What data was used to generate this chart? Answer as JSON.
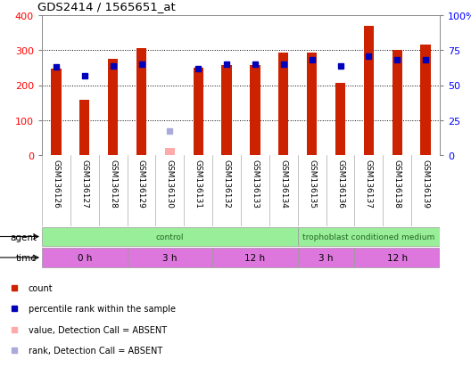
{
  "title": "GDS2414 / 1565651_at",
  "samples": [
    "GSM136126",
    "GSM136127",
    "GSM136128",
    "GSM136129",
    "GSM136130",
    "GSM136131",
    "GSM136132",
    "GSM136133",
    "GSM136134",
    "GSM136135",
    "GSM136136",
    "GSM136137",
    "GSM136138",
    "GSM136139"
  ],
  "counts": [
    248,
    158,
    275,
    305,
    20,
    250,
    257,
    257,
    293,
    293,
    207,
    370,
    300,
    315
  ],
  "ranks": [
    63,
    57,
    64,
    65,
    17,
    62,
    65,
    65,
    65,
    68,
    64,
    71,
    68,
    68
  ],
  "absent": [
    false,
    false,
    false,
    false,
    true,
    false,
    false,
    false,
    false,
    false,
    false,
    false,
    false,
    false
  ],
  "ylim_left": [
    0,
    400
  ],
  "ylim_right": [
    0,
    100
  ],
  "yticks_left": [
    0,
    100,
    200,
    300,
    400
  ],
  "ytick_labels_left": [
    "0",
    "100",
    "200",
    "300",
    "400"
  ],
  "yticks_right": [
    0,
    25,
    50,
    75,
    100
  ],
  "ytick_labels_right": [
    "0",
    "25",
    "50",
    "75",
    "100%"
  ],
  "bar_color": "#cc2200",
  "bar_absent_color": "#ffaaaa",
  "rank_color": "#0000bb",
  "rank_absent_color": "#aaaadd",
  "bg_color": "#cccccc",
  "plot_bg": "#ffffff",
  "agent_color": "#99ee99",
  "time_color": "#dd77dd",
  "agent_groups": [
    {
      "label": "control",
      "start": 0,
      "end": 9
    },
    {
      "label": "trophoblast conditioned medium",
      "start": 9,
      "end": 14
    }
  ],
  "time_groups": [
    {
      "label": "0 h",
      "start": 0,
      "end": 3
    },
    {
      "label": "3 h",
      "start": 3,
      "end": 6
    },
    {
      "label": "12 h",
      "start": 6,
      "end": 9
    },
    {
      "label": "3 h",
      "start": 9,
      "end": 11
    },
    {
      "label": "12 h",
      "start": 11,
      "end": 14
    }
  ],
  "legend_items": [
    {
      "label": "count",
      "color": "#cc2200"
    },
    {
      "label": "percentile rank within the sample",
      "color": "#0000bb"
    },
    {
      "label": "value, Detection Call = ABSENT",
      "color": "#ffaaaa"
    },
    {
      "label": "rank, Detection Call = ABSENT",
      "color": "#aaaadd"
    }
  ],
  "agent_label": "agent",
  "time_label": "time",
  "bar_width": 0.35,
  "rank_marker_size": 5
}
